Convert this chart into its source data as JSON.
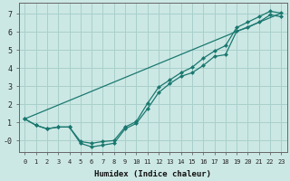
{
  "xlabel": "Humidex (Indice chaleur)",
  "bg_color": "#cce8e4",
  "grid_color": "#a8d0cc",
  "line_color": "#1a7870",
  "xlim": [
    -0.5,
    23.5
  ],
  "ylim": [
    -0.65,
    7.6
  ],
  "xticks": [
    0,
    1,
    2,
    3,
    4,
    5,
    6,
    7,
    8,
    9,
    10,
    11,
    12,
    13,
    14,
    15,
    16,
    17,
    18,
    19,
    20,
    21,
    22,
    23
  ],
  "yticks": [
    0,
    1,
    2,
    3,
    4,
    5,
    6,
    7
  ],
  "ytick_labels": [
    "-0",
    "1",
    "2",
    "3",
    "4",
    "5",
    "6",
    "7"
  ],
  "line1_x": [
    0,
    1,
    2,
    3,
    4,
    5,
    6,
    7,
    8,
    9,
    10,
    11,
    12,
    13,
    14,
    15,
    16,
    17,
    18,
    19,
    20,
    21,
    22,
    23
  ],
  "line1_y": [
    1.2,
    0.85,
    0.65,
    0.75,
    0.75,
    -0.15,
    -0.35,
    -0.25,
    -0.15,
    0.65,
    0.95,
    1.75,
    2.65,
    3.15,
    3.55,
    3.75,
    4.15,
    4.65,
    4.75,
    6.05,
    6.25,
    6.55,
    6.95,
    6.85
  ],
  "line2_x": [
    0,
    1,
    2,
    3,
    4,
    5,
    6,
    7,
    8,
    9,
    10,
    11,
    12,
    13,
    14,
    15,
    16,
    17,
    18,
    19,
    20,
    21,
    22,
    23
  ],
  "line2_y": [
    1.2,
    0.85,
    0.65,
    0.75,
    0.75,
    -0.05,
    -0.15,
    -0.05,
    0.0,
    0.75,
    1.05,
    2.05,
    2.95,
    3.35,
    3.75,
    4.05,
    4.55,
    4.95,
    5.25,
    6.25,
    6.55,
    6.85,
    7.15,
    7.05
  ],
  "line3_x": [
    0,
    23
  ],
  "line3_y": [
    1.2,
    7.05
  ]
}
